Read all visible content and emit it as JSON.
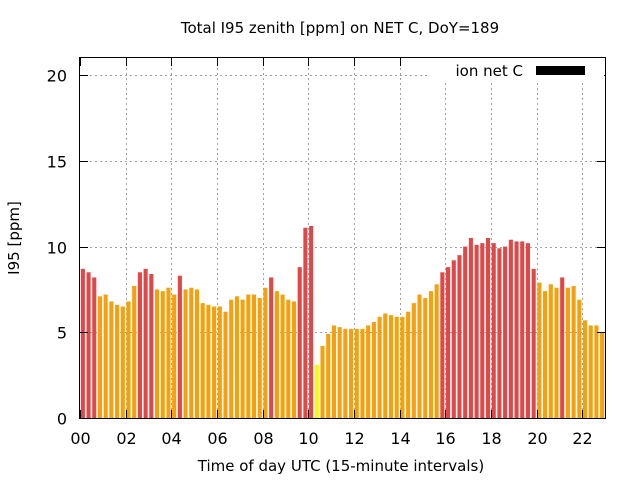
{
  "chart_data": {
    "type": "bar",
    "title": "Total I95 zenith [ppm] on NET C, DoY=189",
    "xlabel": "Time of day UTC (15-minute intervals)",
    "ylabel": "I95 [ppm]",
    "xlim": [
      0,
      23
    ],
    "ylim": [
      0,
      21
    ],
    "yticks": [
      0,
      5,
      10,
      15,
      20
    ],
    "xtick_values": [
      0,
      2,
      4,
      6,
      8,
      10,
      12,
      14,
      16,
      18,
      20,
      22
    ],
    "xtick_labels": [
      "00",
      "02",
      "04",
      "06",
      "08",
      "10",
      "12",
      "14",
      "16",
      "18",
      "20",
      "22"
    ],
    "grid": true,
    "legend": {
      "position": "top-right",
      "entries": [
        {
          "label": "ion net C",
          "color": "#000000"
        }
      ]
    },
    "colors": {
      "red": "#e04848",
      "orange": "#f5a00c",
      "yellow": "#f8f818"
    },
    "bar_interval_hours": 0.25,
    "values": [
      8.7,
      8.5,
      8.2,
      7.1,
      7.2,
      6.8,
      6.6,
      6.5,
      6.8,
      7.7,
      8.5,
      8.7,
      8.4,
      7.5,
      7.4,
      7.6,
      7.2,
      8.3,
      7.5,
      7.6,
      7.5,
      6.7,
      6.6,
      6.5,
      6.5,
      6.2,
      6.9,
      7.1,
      6.9,
      7.2,
      7.2,
      7.0,
      7.6,
      8.2,
      7.4,
      7.2,
      6.9,
      6.8,
      8.8,
      11.1,
      11.2,
      3.1,
      4.2,
      4.9,
      5.4,
      5.3,
      5.2,
      5.2,
      5.2,
      5.2,
      5.4,
      5.6,
      5.9,
      6.1,
      6.0,
      5.9,
      5.9,
      6.2,
      6.7,
      7.2,
      7.0,
      7.4,
      7.8,
      8.5,
      8.8,
      9.2,
      9.5,
      10.0,
      10.5,
      10.1,
      10.2,
      10.5,
      10.2,
      9.9,
      10.0,
      10.4,
      10.3,
      10.3,
      10.2,
      8.7,
      7.9,
      7.4,
      7.8,
      7.6,
      8.2,
      7.6,
      7.7,
      6.9,
      5.7,
      5.4,
      5.4,
      5.0
    ],
    "bar_colors": [
      "red",
      "red",
      "red",
      "orange",
      "orange",
      "orange",
      "orange",
      "orange",
      "orange",
      "orange",
      "red",
      "red",
      "red",
      "orange",
      "orange",
      "orange",
      "orange",
      "red",
      "orange",
      "orange",
      "orange",
      "orange",
      "orange",
      "orange",
      "orange",
      "orange",
      "orange",
      "orange",
      "orange",
      "orange",
      "orange",
      "orange",
      "orange",
      "red",
      "orange",
      "orange",
      "orange",
      "orange",
      "red",
      "red",
      "red",
      "yellow",
      "orange",
      "orange",
      "orange",
      "orange",
      "orange",
      "orange",
      "orange",
      "orange",
      "orange",
      "orange",
      "orange",
      "orange",
      "orange",
      "orange",
      "orange",
      "orange",
      "orange",
      "orange",
      "orange",
      "orange",
      "orange",
      "red",
      "red",
      "red",
      "red",
      "red",
      "red",
      "red",
      "red",
      "red",
      "red",
      "red",
      "red",
      "red",
      "red",
      "red",
      "red",
      "red",
      "orange",
      "orange",
      "orange",
      "orange",
      "red",
      "orange",
      "orange",
      "orange",
      "orange",
      "orange",
      "orange",
      "orange"
    ]
  }
}
